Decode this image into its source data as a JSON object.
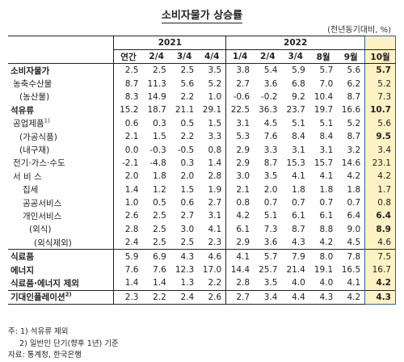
{
  "title": "소비자물가 상승률",
  "unit": "(전년동기대비, %)",
  "header": {
    "year_2021": "2021",
    "year_2022": "2022",
    "cols": [
      "연간",
      "2/4",
      "3/4",
      "4/4",
      "1/4",
      "2/4",
      "3/4",
      "8월",
      "9월",
      "10월"
    ]
  },
  "rows": [
    {
      "label": "소비자물가",
      "values": [
        "2.5",
        "2.5",
        "2.5",
        "3.5",
        "3.8",
        "5.4",
        "5.9",
        "5.7",
        "5.6",
        "5.7"
      ],
      "bold_last": true
    },
    {
      "label": "농축수산물",
      "values": [
        "8.7",
        "11.3",
        "5.6",
        "5.2",
        "2.7",
        "3.6",
        "6.8",
        "7.0",
        "6.2",
        "5.2"
      ],
      "bold_last": false
    },
    {
      "label": "(농산물)",
      "values": [
        "8.3",
        "14.9",
        "2.2",
        "1.0",
        "-0.6",
        "-0.2",
        "9.2",
        "10.4",
        "8.7",
        "7.3"
      ],
      "bold_last": false
    },
    {
      "label": "석유류",
      "values": [
        "15.2",
        "18.7",
        "21.1",
        "29.1",
        "22.5",
        "36.3",
        "23.7",
        "19.7",
        "16.6",
        "10.7"
      ],
      "bold_last": true
    },
    {
      "label": "공업제품",
      "sup": "1)",
      "values": [
        "0.6",
        "0.3",
        "0.5",
        "1.5",
        "3.1",
        "4.5",
        "5.1",
        "5.1",
        "5.2",
        "5.6"
      ],
      "bold_last": false
    },
    {
      "label": "(가공식품)",
      "values": [
        "2.1",
        "1.5",
        "2.2",
        "3.3",
        "5.3",
        "7.6",
        "8.4",
        "8.4",
        "8.7",
        "9.5"
      ],
      "bold_last": true
    },
    {
      "label": "(내구재)",
      "values": [
        "0.0",
        "-0.3",
        "-0.5",
        "0.8",
        "2.9",
        "3.3",
        "3.1",
        "3.1",
        "3.2",
        "3.4"
      ],
      "bold_last": false
    },
    {
      "label": "전기·가스·수도",
      "values": [
        "-2.1",
        "-4.8",
        "0.3",
        "1.4",
        "2.9",
        "8.7",
        "15.3",
        "15.7",
        "14.6",
        "23.1"
      ],
      "bold_last": false
    },
    {
      "label": "서 비 스",
      "values": [
        "2.0",
        "1.8",
        "2.0",
        "2.8",
        "3.0",
        "3.5",
        "4.1",
        "4.1",
        "4.2",
        "4.2"
      ],
      "bold_last": false
    },
    {
      "label": "집세",
      "values": [
        "1.4",
        "1.2",
        "1.5",
        "1.9",
        "2.1",
        "2.0",
        "1.8",
        "1.8",
        "1.8",
        "1.7"
      ],
      "bold_last": false
    },
    {
      "label": "공공서비스",
      "values": [
        "1.0",
        "0.5",
        "0.6",
        "2.7",
        "0.8",
        "0.7",
        "0.7",
        "0.7",
        "0.7",
        "0.8"
      ],
      "bold_last": false
    },
    {
      "label": "개인서비스",
      "values": [
        "2.6",
        "2.5",
        "2.7",
        "3.1",
        "4.2",
        "5.1",
        "6.1",
        "6.1",
        "6.4",
        "6.4"
      ],
      "bold_last": true
    },
    {
      "label": "(외식)",
      "values": [
        "2.8",
        "2.5",
        "3.0",
        "4.1",
        "6.1",
        "7.3",
        "8.7",
        "8.8",
        "9.0",
        "8.9"
      ],
      "bold_last": true
    },
    {
      "label": "(외식제외)",
      "values": [
        "2.4",
        "2.5",
        "2.5",
        "2.3",
        "2.9",
        "3.6",
        "4.3",
        "4.2",
        "4.5",
        "4.6"
      ],
      "bold_last": false
    },
    {
      "label": "식료품",
      "values": [
        "5.9",
        "6.9",
        "4.3",
        "4.6",
        "4.1",
        "5.7",
        "7.9",
        "8.0",
        "7.8",
        "7.5"
      ],
      "bold_last": false
    },
    {
      "label": "에너지",
      "values": [
        "7.6",
        "7.6",
        "12.3",
        "17.0",
        "14.4",
        "25.7",
        "21.4",
        "19.1",
        "16.5",
        "16.7"
      ],
      "bold_last": false
    },
    {
      "label": "식료품·에너지 제외",
      "values": [
        "1.4",
        "1.4",
        "1.3",
        "2.2",
        "2.8",
        "3.5",
        "4.0",
        "4.0",
        "4.1",
        "4.2"
      ],
      "bold_last": true
    },
    {
      "label": "기대인플레이션",
      "sup": "2)",
      "values": [
        "2.3",
        "2.2",
        "2.4",
        "2.6",
        "2.7",
        "3.4",
        "4.4",
        "4.3",
        "4.2",
        "4.3"
      ],
      "bold_last": true
    }
  ],
  "notes": {
    "note_label": "주:",
    "note1": "1) 석유류 제외",
    "note2": "2) 일반인 단기(향후 1년) 기준",
    "source": "자료: 통계청, 한국은행"
  }
}
